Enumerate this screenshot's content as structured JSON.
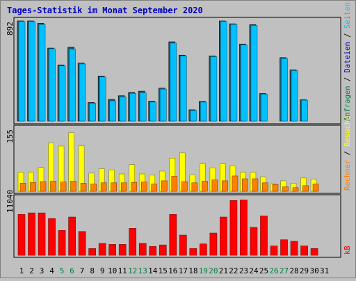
{
  "chart_data": [
    {
      "type": "bar",
      "panel": "top",
      "title": "Tages-Statistik im Monat September 2020",
      "ymax_label": "892",
      "ylim": [
        0,
        892
      ],
      "categories": [
        "1",
        "2",
        "3",
        "4",
        "5",
        "6",
        "7",
        "8",
        "9",
        "10",
        "11",
        "12",
        "13",
        "14",
        "15",
        "16",
        "17",
        "18",
        "19",
        "20",
        "21",
        "22",
        "23",
        "24",
        "25",
        "26",
        "27",
        "28",
        "29",
        "30",
        "31"
      ],
      "weekend_days": [
        "5",
        "6",
        "12",
        "13",
        "19",
        "20",
        "26",
        "27"
      ],
      "right_legend": [
        {
          "label": "Anfragen",
          "color": "#008040"
        },
        {
          "label": "Dateien",
          "color": "#0000C0"
        },
        {
          "label": "Seiten",
          "color": "#00C0FF"
        }
      ],
      "series": [
        {
          "name": "Anfragen",
          "color": "#008080",
          "values": [
            892,
            892,
            871,
            650,
            500,
            657,
            516,
            165,
            401,
            193,
            225,
            255,
            266,
            177,
            293,
            706,
            587,
            100,
            175,
            580,
            892,
            866,
            686,
            858,
            245,
            0,
            565,
            455,
            190,
            0,
            0
          ]
        },
        {
          "name": "Dateien",
          "color": "#00C0FF",
          "values": [
            887,
            887,
            860,
            643,
            491,
            640,
            508,
            158,
            393,
            180,
            216,
            246,
            253,
            169,
            284,
            694,
            579,
            94,
            168,
            573,
            887,
            860,
            678,
            851,
            239,
            0,
            557,
            449,
            185,
            0,
            0
          ]
        }
      ]
    },
    {
      "type": "bar",
      "panel": "middle",
      "ymax_label": "155",
      "ylim": [
        0,
        155
      ],
      "right_legend": [
        {
          "label": "Rechner",
          "color": "#FF8000"
        },
        {
          "label": "Besuche",
          "color": "#FFFF00"
        }
      ],
      "series": [
        {
          "name": "Besuche",
          "color": "#FFFF00",
          "values": [
            47,
            47,
            59,
            120,
            112,
            145,
            113,
            45,
            56,
            53,
            43,
            66,
            43,
            40,
            50,
            82,
            95,
            41,
            68,
            58,
            68,
            63,
            47,
            47,
            36,
            18,
            26,
            20,
            33,
            30,
            0
          ]
        },
        {
          "name": "Rechner",
          "color": "#FF8000",
          "values": [
            20,
            22,
            24,
            25,
            23,
            25,
            20,
            18,
            21,
            21,
            21,
            22,
            23,
            18,
            26,
            37,
            24,
            21,
            25,
            28,
            26,
            38,
            31,
            31,
            21,
            17,
            11,
            9,
            14,
            18,
            0
          ]
        }
      ]
    },
    {
      "type": "bar",
      "panel": "bottom",
      "ymax_label": "11040",
      "ylim": [
        0,
        11040
      ],
      "right_legend": [
        {
          "label": "kB",
          "color": "#FF0000"
        }
      ],
      "series": [
        {
          "name": "kB",
          "color": "#FF0000",
          "values": [
            7900,
            8200,
            8200,
            7100,
            4800,
            7400,
            4600,
            1300,
            2300,
            2100,
            2100,
            5200,
            2300,
            1700,
            2000,
            7900,
            3900,
            1300,
            2200,
            4300,
            7400,
            10600,
            10700,
            5400,
            7600,
            1800,
            3000,
            2700,
            1800,
            1300,
            0
          ]
        }
      ]
    }
  ]
}
